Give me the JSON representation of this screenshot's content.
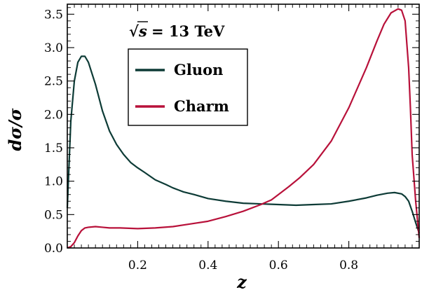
{
  "chart_data": {
    "type": "line",
    "title": "",
    "xlabel": "z",
    "ylabel": "dσ/σ",
    "xlim": [
      0.0,
      1.0
    ],
    "ylim": [
      0.0,
      3.65
    ],
    "xticks": [
      0.2,
      0.4,
      0.6,
      0.8
    ],
    "xtick_labels": [
      "0.2",
      "0.4",
      "0.6",
      "0.8"
    ],
    "yticks": [
      0.0,
      0.5,
      1.0,
      1.5,
      2.0,
      2.5,
      3.0,
      3.5
    ],
    "ytick_labels": [
      "0.0",
      "0.5",
      "1.0",
      "1.5",
      "2.0",
      "2.5",
      "3.0",
      "3.5"
    ],
    "grid": false,
    "legend_position": "upper-left",
    "annotation": {
      "text": "= 13 TeV",
      "sqrt_symbol": "√",
      "sqrt_arg": "s"
    },
    "series": [
      {
        "name": "Gluon",
        "color": "#0d3b36",
        "x": [
          0.0,
          0.01,
          0.02,
          0.03,
          0.04,
          0.05,
          0.06,
          0.08,
          0.1,
          0.12,
          0.14,
          0.16,
          0.18,
          0.2,
          0.22,
          0.25,
          0.28,
          0.3,
          0.33,
          0.36,
          0.4,
          0.45,
          0.5,
          0.55,
          0.6,
          0.65,
          0.7,
          0.75,
          0.8,
          0.85,
          0.88,
          0.91,
          0.93,
          0.95,
          0.96,
          0.97,
          0.98,
          0.99,
          1.0
        ],
        "y": [
          0.6,
          1.9,
          2.5,
          2.78,
          2.87,
          2.87,
          2.78,
          2.45,
          2.05,
          1.75,
          1.55,
          1.4,
          1.28,
          1.2,
          1.13,
          1.02,
          0.95,
          0.9,
          0.84,
          0.8,
          0.74,
          0.7,
          0.67,
          0.66,
          0.65,
          0.64,
          0.65,
          0.66,
          0.7,
          0.75,
          0.79,
          0.82,
          0.83,
          0.81,
          0.77,
          0.7,
          0.55,
          0.38,
          0.22
        ]
      },
      {
        "name": "Charm",
        "color": "#b8113a",
        "x": [
          0.0,
          0.01,
          0.02,
          0.03,
          0.04,
          0.05,
          0.06,
          0.08,
          0.1,
          0.12,
          0.15,
          0.2,
          0.25,
          0.3,
          0.35,
          0.4,
          0.45,
          0.5,
          0.55,
          0.58,
          0.6,
          0.63,
          0.66,
          0.7,
          0.75,
          0.8,
          0.85,
          0.88,
          0.9,
          0.92,
          0.94,
          0.95,
          0.96,
          0.97,
          0.975,
          0.98,
          0.99,
          1.0
        ],
        "y": [
          0.0,
          0.02,
          0.08,
          0.18,
          0.26,
          0.3,
          0.31,
          0.32,
          0.31,
          0.3,
          0.3,
          0.29,
          0.3,
          0.32,
          0.36,
          0.4,
          0.47,
          0.55,
          0.65,
          0.72,
          0.8,
          0.92,
          1.05,
          1.25,
          1.6,
          2.1,
          2.7,
          3.1,
          3.35,
          3.52,
          3.58,
          3.56,
          3.4,
          2.7,
          2.1,
          1.4,
          0.7,
          0.15
        ]
      }
    ]
  }
}
